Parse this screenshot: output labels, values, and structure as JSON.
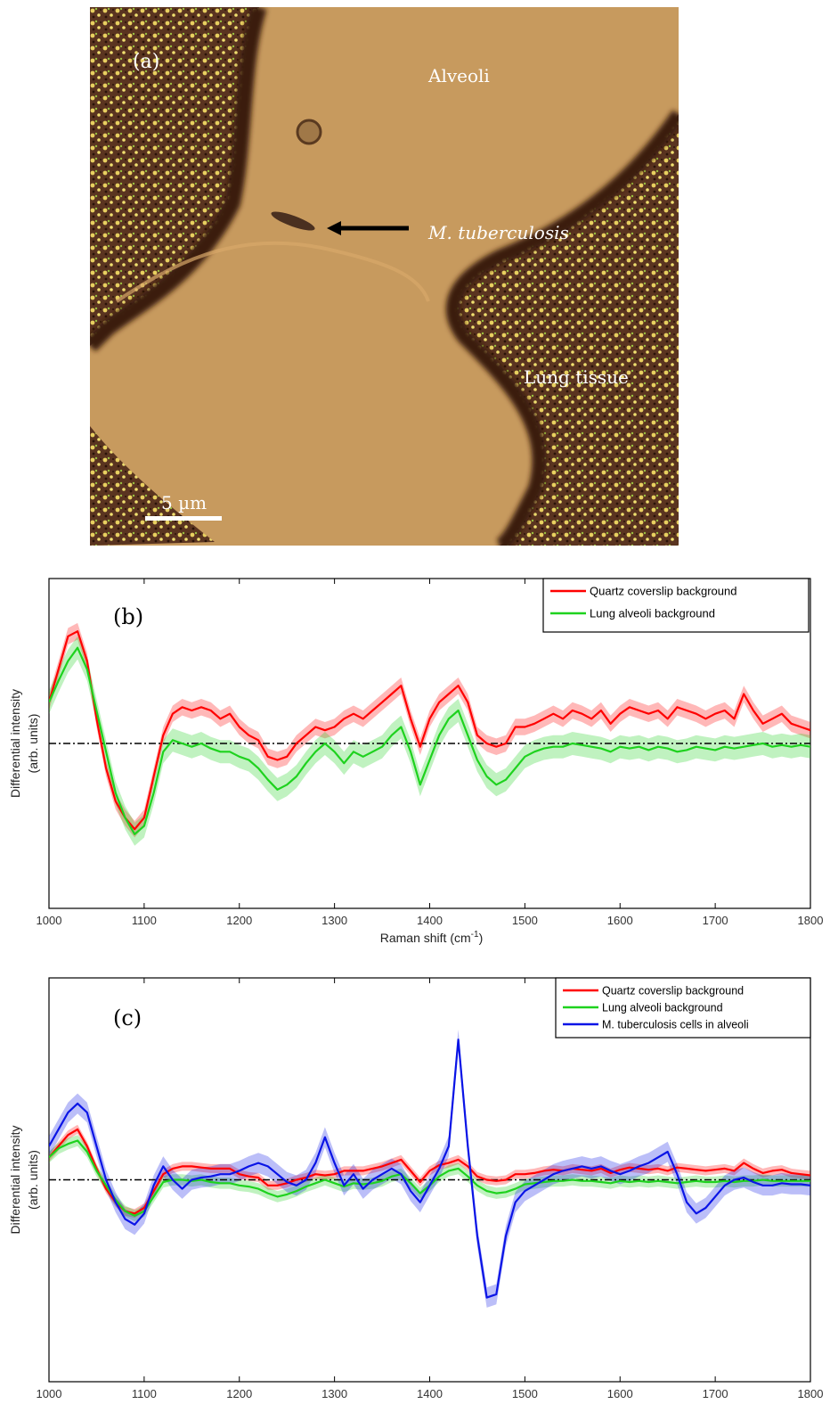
{
  "micrograph": {
    "panel_label": "(a)",
    "labels": {
      "alveoli": "Alveoli",
      "bacterium": "M. tuberculosis",
      "tissue": "Lung tissue"
    },
    "scale_bar": "5 µm"
  },
  "chart_data": [
    {
      "type": "line",
      "panel_label": "(b)",
      "xlabel": "Raman shift (cm",
      "xlabel_sup": "-1",
      "xlabel_close": ")",
      "ylabel_1": "Differential intensity",
      "ylabel_2": "(arb. units)",
      "xlim": [
        1000,
        1800
      ],
      "ylim": [
        -1.0,
        1.0
      ],
      "xticks": [
        1000,
        1100,
        1200,
        1300,
        1400,
        1500,
        1600,
        1700,
        1800
      ],
      "yticks_labeled": false,
      "legend": "top-right",
      "baseline": 0,
      "colors": {
        "red": "#ff0000",
        "green": "#1ed21e"
      },
      "series": [
        {
          "name": "Quartz coverslip background",
          "color": "#ff0000",
          "x": [
            1000,
            1010,
            1020,
            1030,
            1040,
            1050,
            1060,
            1070,
            1080,
            1090,
            1100,
            1110,
            1120,
            1130,
            1140,
            1150,
            1160,
            1170,
            1180,
            1190,
            1200,
            1210,
            1220,
            1230,
            1240,
            1250,
            1260,
            1270,
            1280,
            1290,
            1300,
            1310,
            1320,
            1330,
            1340,
            1350,
            1360,
            1370,
            1380,
            1390,
            1400,
            1410,
            1420,
            1430,
            1440,
            1450,
            1460,
            1470,
            1480,
            1490,
            1500,
            1510,
            1520,
            1530,
            1540,
            1550,
            1560,
            1570,
            1580,
            1590,
            1600,
            1610,
            1620,
            1630,
            1640,
            1650,
            1660,
            1670,
            1680,
            1690,
            1700,
            1710,
            1720,
            1730,
            1740,
            1750,
            1760,
            1770,
            1780,
            1790,
            1800
          ],
          "y": [
            0.25,
            0.45,
            0.65,
            0.68,
            0.5,
            0.15,
            -0.15,
            -0.35,
            -0.45,
            -0.52,
            -0.45,
            -0.2,
            0.05,
            0.18,
            0.22,
            0.2,
            0.22,
            0.2,
            0.15,
            0.18,
            0.1,
            0.05,
            0.02,
            -0.08,
            -0.1,
            -0.08,
            0.0,
            0.05,
            0.1,
            0.08,
            0.1,
            0.15,
            0.18,
            0.15,
            0.2,
            0.25,
            0.3,
            0.35,
            0.15,
            -0.02,
            0.15,
            0.25,
            0.3,
            0.35,
            0.25,
            0.05,
            0.0,
            -0.02,
            0.0,
            0.1,
            0.1,
            0.12,
            0.15,
            0.18,
            0.15,
            0.2,
            0.18,
            0.15,
            0.2,
            0.12,
            0.18,
            0.22,
            0.2,
            0.18,
            0.2,
            0.15,
            0.22,
            0.2,
            0.18,
            0.15,
            0.18,
            0.2,
            0.15,
            0.3,
            0.2,
            0.12,
            0.15,
            0.18,
            0.12,
            0.1,
            0.08
          ],
          "band": 0.05
        },
        {
          "name": "Lung alveoli background",
          "color": "#1ed21e",
          "x": [
            1000,
            1010,
            1020,
            1030,
            1040,
            1050,
            1060,
            1070,
            1080,
            1090,
            1100,
            1110,
            1120,
            1130,
            1140,
            1150,
            1160,
            1170,
            1180,
            1190,
            1200,
            1210,
            1220,
            1230,
            1240,
            1250,
            1260,
            1270,
            1280,
            1290,
            1300,
            1310,
            1320,
            1330,
            1340,
            1350,
            1360,
            1370,
            1380,
            1390,
            1400,
            1410,
            1420,
            1430,
            1440,
            1450,
            1460,
            1470,
            1480,
            1490,
            1500,
            1510,
            1520,
            1530,
            1540,
            1550,
            1560,
            1570,
            1580,
            1590,
            1600,
            1610,
            1620,
            1630,
            1640,
            1650,
            1660,
            1670,
            1680,
            1690,
            1700,
            1710,
            1720,
            1730,
            1740,
            1750,
            1760,
            1770,
            1780,
            1790,
            1800
          ],
          "y": [
            0.25,
            0.38,
            0.5,
            0.58,
            0.45,
            0.2,
            -0.05,
            -0.3,
            -0.45,
            -0.55,
            -0.5,
            -0.3,
            -0.05,
            0.02,
            0.0,
            -0.02,
            0.0,
            -0.03,
            -0.05,
            -0.05,
            -0.08,
            -0.1,
            -0.15,
            -0.22,
            -0.28,
            -0.25,
            -0.2,
            -0.12,
            -0.05,
            0.0,
            -0.05,
            -0.12,
            -0.05,
            -0.08,
            -0.05,
            -0.02,
            0.05,
            0.1,
            -0.05,
            -0.25,
            -0.1,
            0.05,
            0.15,
            0.2,
            0.05,
            -0.1,
            -0.2,
            -0.25,
            -0.22,
            -0.15,
            -0.08,
            -0.05,
            -0.03,
            -0.02,
            -0.02,
            0.0,
            -0.01,
            -0.02,
            -0.03,
            -0.05,
            -0.02,
            -0.03,
            -0.02,
            -0.04,
            -0.02,
            -0.03,
            -0.05,
            -0.04,
            -0.02,
            -0.03,
            -0.04,
            -0.02,
            -0.03,
            -0.02,
            -0.01,
            0.0,
            -0.02,
            -0.01,
            -0.02,
            -0.01,
            -0.02
          ],
          "band": 0.07
        }
      ]
    },
    {
      "type": "line",
      "panel_label": "(c)",
      "xlabel": "Raman shift (cm",
      "xlabel_sup": "-1",
      "xlabel_close": ")",
      "ylabel_1": "Differential intensity",
      "ylabel_2": "(arb. units)",
      "xlim": [
        1000,
        1800
      ],
      "ylim": [
        -1.8,
        1.8
      ],
      "xticks": [
        1000,
        1100,
        1200,
        1300,
        1400,
        1500,
        1600,
        1700,
        1800
      ],
      "yticks_labeled": false,
      "legend": "top-right",
      "baseline": 0,
      "colors": {
        "red": "#ff0000",
        "green": "#1ed21e",
        "blue": "#0a14e6"
      },
      "series": [
        {
          "name": "Quartz coverslip background",
          "color": "#ff0000",
          "x": [
            1000,
            1010,
            1020,
            1030,
            1040,
            1050,
            1060,
            1070,
            1080,
            1090,
            1100,
            1110,
            1120,
            1130,
            1140,
            1150,
            1160,
            1170,
            1180,
            1190,
            1200,
            1210,
            1220,
            1230,
            1240,
            1250,
            1260,
            1270,
            1280,
            1290,
            1300,
            1310,
            1320,
            1330,
            1340,
            1350,
            1360,
            1370,
            1380,
            1390,
            1400,
            1410,
            1420,
            1430,
            1440,
            1450,
            1460,
            1470,
            1480,
            1490,
            1500,
            1510,
            1520,
            1530,
            1540,
            1550,
            1560,
            1570,
            1580,
            1590,
            1600,
            1610,
            1620,
            1630,
            1640,
            1650,
            1660,
            1670,
            1680,
            1690,
            1700,
            1710,
            1720,
            1730,
            1740,
            1750,
            1760,
            1770,
            1780,
            1790,
            1800
          ],
          "y": [
            0.2,
            0.3,
            0.4,
            0.45,
            0.3,
            0.1,
            -0.08,
            -0.2,
            -0.28,
            -0.3,
            -0.25,
            -0.1,
            0.05,
            0.1,
            0.12,
            0.12,
            0.11,
            0.1,
            0.1,
            0.1,
            0.05,
            0.03,
            0.02,
            -0.05,
            -0.05,
            -0.03,
            0.0,
            0.02,
            0.05,
            0.04,
            0.05,
            0.08,
            0.08,
            0.08,
            0.1,
            0.12,
            0.15,
            0.18,
            0.08,
            -0.02,
            0.08,
            0.13,
            0.15,
            0.18,
            0.12,
            0.03,
            0.0,
            -0.01,
            0.0,
            0.05,
            0.05,
            0.06,
            0.08,
            0.09,
            0.08,
            0.1,
            0.09,
            0.08,
            0.1,
            0.06,
            0.09,
            0.11,
            0.1,
            0.09,
            0.1,
            0.08,
            0.11,
            0.1,
            0.09,
            0.08,
            0.09,
            0.1,
            0.08,
            0.15,
            0.1,
            0.06,
            0.08,
            0.09,
            0.06,
            0.05,
            0.04
          ],
          "band": 0.04
        },
        {
          "name": "Lung alveoli background",
          "color": "#1ed21e",
          "x": [
            1000,
            1010,
            1020,
            1030,
            1040,
            1050,
            1060,
            1070,
            1080,
            1090,
            1100,
            1110,
            1120,
            1130,
            1140,
            1150,
            1160,
            1170,
            1180,
            1190,
            1200,
            1210,
            1220,
            1230,
            1240,
            1250,
            1260,
            1270,
            1280,
            1290,
            1300,
            1310,
            1320,
            1330,
            1340,
            1350,
            1360,
            1370,
            1380,
            1390,
            1400,
            1410,
            1420,
            1430,
            1440,
            1450,
            1460,
            1470,
            1480,
            1490,
            1500,
            1510,
            1520,
            1530,
            1540,
            1550,
            1560,
            1570,
            1580,
            1590,
            1600,
            1610,
            1620,
            1630,
            1640,
            1650,
            1660,
            1670,
            1680,
            1690,
            1700,
            1710,
            1720,
            1730,
            1740,
            1750,
            1760,
            1770,
            1780,
            1790,
            1800
          ],
          "y": [
            0.2,
            0.28,
            0.32,
            0.35,
            0.25,
            0.08,
            -0.05,
            -0.18,
            -0.28,
            -0.32,
            -0.28,
            -0.15,
            -0.02,
            0.0,
            0.0,
            -0.01,
            0.0,
            -0.02,
            -0.03,
            -0.03,
            -0.05,
            -0.06,
            -0.08,
            -0.12,
            -0.15,
            -0.13,
            -0.1,
            -0.06,
            -0.03,
            0.0,
            -0.03,
            -0.06,
            -0.03,
            -0.04,
            -0.03,
            -0.01,
            0.03,
            0.05,
            -0.03,
            -0.12,
            -0.05,
            0.03,
            0.08,
            0.1,
            0.03,
            -0.05,
            -0.1,
            -0.12,
            -0.11,
            -0.08,
            -0.04,
            -0.03,
            -0.02,
            -0.01,
            -0.01,
            0.0,
            -0.01,
            -0.01,
            -0.02,
            -0.03,
            -0.01,
            -0.02,
            -0.01,
            -0.02,
            -0.01,
            -0.02,
            -0.03,
            -0.02,
            -0.01,
            -0.02,
            -0.02,
            -0.01,
            -0.02,
            -0.01,
            -0.01,
            0.0,
            -0.01,
            -0.01,
            -0.01,
            -0.01,
            -0.01
          ],
          "band": 0.05
        },
        {
          "name": "M. tuberculosis cells in alveoli",
          "color": "#0a14e6",
          "x": [
            1000,
            1010,
            1020,
            1030,
            1040,
            1050,
            1060,
            1070,
            1080,
            1090,
            1100,
            1110,
            1120,
            1130,
            1140,
            1150,
            1160,
            1170,
            1180,
            1190,
            1200,
            1210,
            1220,
            1230,
            1240,
            1250,
            1260,
            1270,
            1280,
            1290,
            1300,
            1310,
            1320,
            1330,
            1340,
            1350,
            1360,
            1370,
            1380,
            1390,
            1400,
            1410,
            1420,
            1430,
            1440,
            1450,
            1460,
            1470,
            1480,
            1490,
            1500,
            1510,
            1520,
            1530,
            1540,
            1550,
            1560,
            1570,
            1580,
            1590,
            1600,
            1610,
            1620,
            1630,
            1640,
            1650,
            1660,
            1670,
            1680,
            1690,
            1700,
            1710,
            1720,
            1730,
            1740,
            1750,
            1760,
            1770,
            1780,
            1790,
            1800
          ],
          "y": [
            0.3,
            0.45,
            0.6,
            0.68,
            0.6,
            0.3,
            0.0,
            -0.2,
            -0.35,
            -0.4,
            -0.3,
            -0.05,
            0.12,
            0.0,
            -0.08,
            0.0,
            0.02,
            0.03,
            0.05,
            0.05,
            0.08,
            0.12,
            0.15,
            0.12,
            0.05,
            -0.02,
            -0.05,
            0.0,
            0.15,
            0.38,
            0.15,
            -0.05,
            0.05,
            -0.08,
            0.0,
            0.05,
            0.1,
            0.05,
            -0.1,
            -0.2,
            -0.05,
            0.1,
            0.3,
            1.25,
            0.3,
            -0.5,
            -1.05,
            -1.02,
            -0.5,
            -0.2,
            -0.1,
            -0.05,
            0.0,
            0.05,
            0.08,
            0.1,
            0.12,
            0.1,
            0.12,
            0.08,
            0.05,
            0.08,
            0.12,
            0.15,
            0.2,
            0.25,
            0.05,
            -0.2,
            -0.3,
            -0.25,
            -0.15,
            -0.05,
            0.0,
            0.02,
            -0.02,
            -0.05,
            -0.05,
            -0.03,
            -0.04,
            -0.04,
            -0.05
          ],
          "band": 0.09
        }
      ]
    }
  ]
}
